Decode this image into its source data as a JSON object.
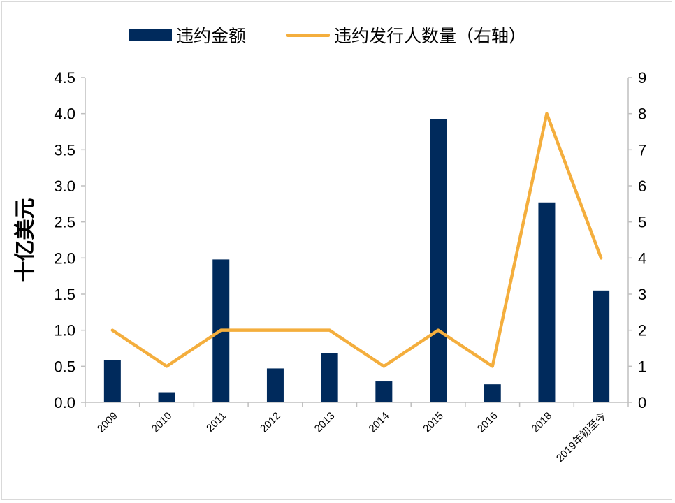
{
  "chart_data": {
    "type": "bar",
    "categories": [
      "2009",
      "2010",
      "2011",
      "2012",
      "2013",
      "2014",
      "2015",
      "2016",
      "2018",
      "2019年初至今"
    ],
    "series": [
      {
        "name": "违约金额",
        "type": "bar",
        "axis": "left",
        "color": "#002a5c",
        "values": [
          0.59,
          0.14,
          1.98,
          0.47,
          0.68,
          0.29,
          3.92,
          0.25,
          2.77,
          1.55
        ]
      },
      {
        "name": "违约发行人数量（右轴）",
        "type": "line",
        "axis": "right",
        "color": "#f4ae3d",
        "values": [
          2,
          1,
          2,
          2,
          2,
          1,
          2,
          1,
          8,
          4
        ]
      }
    ],
    "ylabel": "十亿美元",
    "ylim": [
      0,
      4.5
    ],
    "yticks": [
      "0.0",
      "0.5",
      "1.0",
      "1.5",
      "2.0",
      "2.5",
      "3.0",
      "3.5",
      "4.0",
      "4.5"
    ],
    "y2lim": [
      0,
      9
    ],
    "y2ticks": [
      "0",
      "1",
      "2",
      "3",
      "4",
      "5",
      "6",
      "7",
      "8",
      "9"
    ],
    "grid": false,
    "legend": "top-center"
  }
}
